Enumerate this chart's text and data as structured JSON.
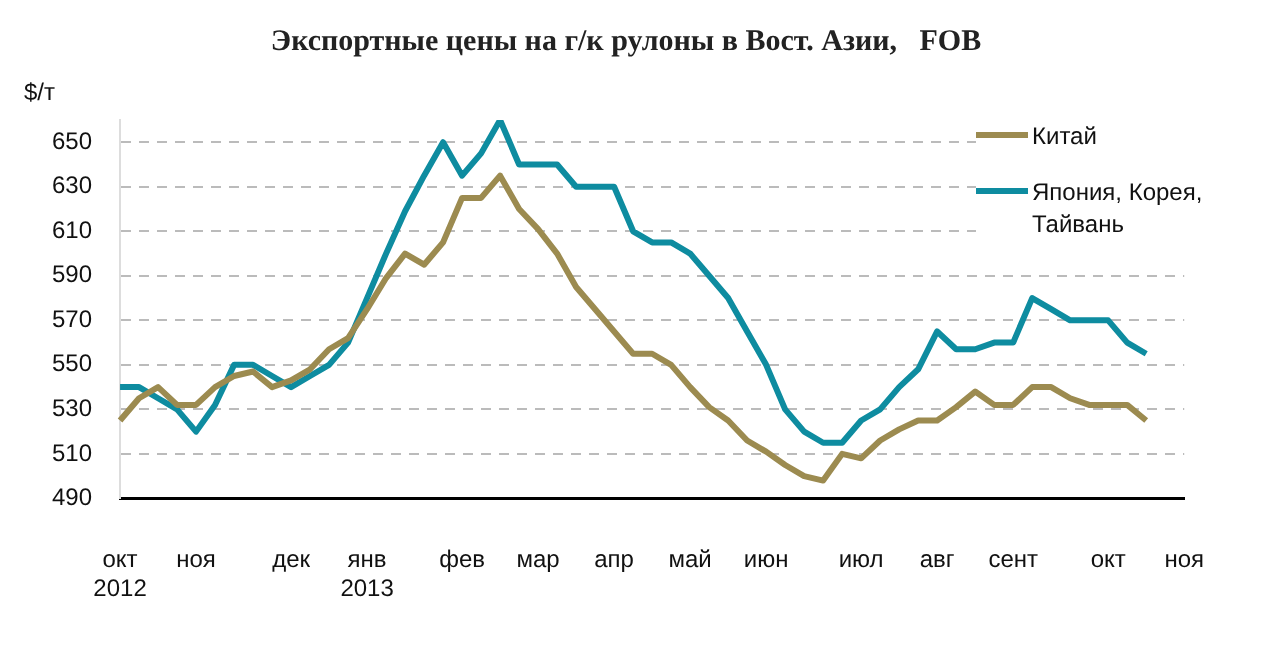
{
  "chart_data": {
    "type": "line",
    "title": "Экспортные цены на г/к рулоны в Вост. Азии,   FOB",
    "ylabel": "$/т",
    "categories": [
      "окт 2012",
      null,
      null,
      null,
      "ноя",
      null,
      null,
      null,
      null,
      "дек",
      null,
      null,
      null,
      "янв 2013",
      null,
      null,
      null,
      null,
      "фев",
      null,
      null,
      null,
      "мар",
      null,
      null,
      null,
      "апр",
      null,
      null,
      null,
      "май",
      null,
      null,
      null,
      "июн",
      null,
      null,
      null,
      null,
      "июл",
      null,
      null,
      null,
      "авг",
      null,
      null,
      null,
      "сент",
      null,
      null,
      null,
      null,
      "окт",
      null,
      null,
      null,
      "ноя"
    ],
    "series": [
      {
        "name": "Китай",
        "color": "#9c8b50",
        "values": [
          525,
          535,
          540,
          532,
          532,
          540,
          545,
          547,
          540,
          543,
          548,
          557,
          562,
          575,
          589,
          600,
          595,
          605,
          625,
          625,
          635,
          620,
          611,
          600,
          585,
          575,
          565,
          555,
          555,
          550,
          540,
          531,
          525,
          516,
          511,
          505,
          500,
          498,
          510,
          508,
          516,
          521,
          525,
          525,
          531,
          538,
          532,
          532,
          540,
          540,
          535,
          532,
          532,
          532,
          525,
          null,
          null
        ]
      },
      {
        "name": "Япония, Корея, Тайвань",
        "color": "#0e8ca0",
        "values": [
          540,
          540,
          535,
          530,
          520,
          532,
          550,
          550,
          545,
          540,
          545,
          550,
          560,
          580,
          600,
          619,
          635,
          650,
          635,
          645,
          660,
          640,
          640,
          640,
          630,
          630,
          630,
          610,
          605,
          605,
          600,
          590,
          580,
          565,
          550,
          530,
          520,
          515,
          515,
          525,
          530,
          540,
          548,
          565,
          557,
          557,
          560,
          560,
          580,
          575,
          570,
          570,
          570,
          560,
          555,
          null,
          null
        ]
      }
    ],
    "ylim": [
      490,
      660
    ],
    "yticks": [
      490,
      510,
      530,
      550,
      570,
      590,
      610,
      630,
      650
    ],
    "grid": "y",
    "legend": "top right",
    "marker": "none",
    "line_style": "solid"
  }
}
